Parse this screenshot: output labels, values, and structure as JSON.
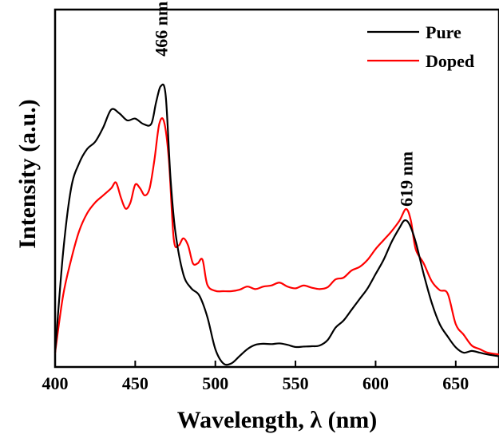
{
  "chart_data": {
    "type": "line",
    "xlabel": "Wavelength, λ (nm)",
    "ylabel": "Intensity (a.u.)",
    "xlim": [
      400,
      677
    ],
    "ylim": [
      0,
      1
    ],
    "xticks": [
      400,
      450,
      500,
      550,
      600,
      650
    ],
    "legend_position": "top-right",
    "grid": false,
    "annotations": [
      {
        "text": "466 nm",
        "x": 466,
        "y": 0.86
      },
      {
        "text": "619 nm",
        "x": 619,
        "y": 0.44
      }
    ],
    "series": [
      {
        "name": "Pure",
        "color": "#000000",
        "x": [
          400,
          405,
          410,
          415,
          420,
          425,
          430,
          435,
          440,
          445,
          450,
          455,
          460,
          463,
          466,
          469,
          472,
          475,
          480,
          485,
          490,
          495,
          500,
          505,
          510,
          515,
          520,
          525,
          530,
          535,
          540,
          545,
          550,
          555,
          560,
          565,
          570,
          575,
          580,
          585,
          590,
          595,
          600,
          605,
          610,
          615,
          618,
          621,
          625,
          630,
          635,
          640,
          645,
          650,
          655,
          660,
          665,
          670,
          677
        ],
        "values": [
          0.04,
          0.32,
          0.5,
          0.57,
          0.61,
          0.63,
          0.67,
          0.72,
          0.71,
          0.69,
          0.695,
          0.68,
          0.68,
          0.74,
          0.786,
          0.76,
          0.53,
          0.38,
          0.26,
          0.22,
          0.2,
          0.14,
          0.05,
          0.01,
          0.01,
          0.03,
          0.05,
          0.062,
          0.065,
          0.064,
          0.066,
          0.062,
          0.056,
          0.057,
          0.058,
          0.06,
          0.075,
          0.11,
          0.13,
          0.16,
          0.19,
          0.22,
          0.26,
          0.3,
          0.35,
          0.39,
          0.41,
          0.4,
          0.35,
          0.26,
          0.18,
          0.12,
          0.085,
          0.055,
          0.04,
          0.045,
          0.04,
          0.035,
          0.03
        ]
      },
      {
        "name": "Doped",
        "color": "#ff0000",
        "x": [
          400,
          405,
          410,
          415,
          420,
          425,
          430,
          435,
          438,
          441,
          444,
          447,
          450,
          453,
          456,
          459,
          462,
          465,
          468,
          471,
          474,
          477,
          480,
          483,
          486,
          489,
          492,
          495,
          500,
          505,
          510,
          515,
          520,
          525,
          530,
          535,
          540,
          545,
          550,
          555,
          560,
          565,
          570,
          575,
          580,
          585,
          590,
          595,
          600,
          605,
          610,
          615,
          619,
          622,
          625,
          630,
          635,
          640,
          645,
          650,
          655,
          660,
          665,
          670,
          677
        ],
        "values": [
          0.04,
          0.2,
          0.3,
          0.38,
          0.43,
          0.46,
          0.48,
          0.5,
          0.516,
          0.475,
          0.443,
          0.46,
          0.51,
          0.5,
          0.48,
          0.5,
          0.58,
          0.68,
          0.686,
          0.58,
          0.36,
          0.34,
          0.36,
          0.34,
          0.29,
          0.29,
          0.3,
          0.23,
          0.213,
          0.212,
          0.212,
          0.216,
          0.225,
          0.218,
          0.225,
          0.228,
          0.236,
          0.225,
          0.22,
          0.228,
          0.222,
          0.218,
          0.223,
          0.245,
          0.25,
          0.27,
          0.28,
          0.3,
          0.33,
          0.355,
          0.38,
          0.41,
          0.442,
          0.41,
          0.33,
          0.29,
          0.24,
          0.215,
          0.205,
          0.12,
          0.09,
          0.06,
          0.05,
          0.04,
          0.035
        ]
      }
    ]
  }
}
